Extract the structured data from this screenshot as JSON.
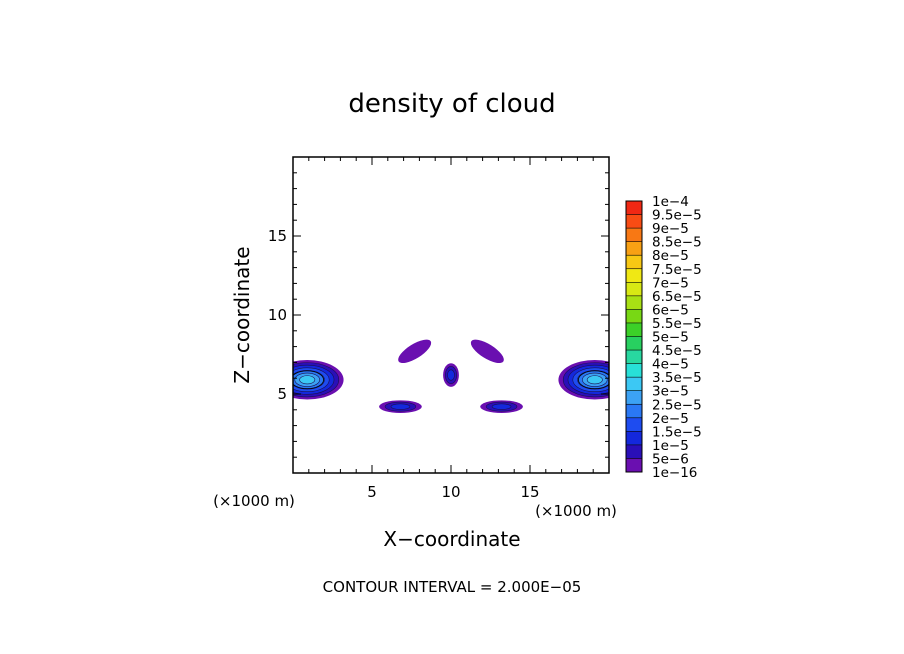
{
  "chart_data": {
    "type": "heatmap",
    "title": "density of cloud",
    "xlabel": "X−coordinate",
    "ylabel": "Z−coordinate",
    "x_unit_label": "(×1000 m)",
    "y_unit_label": "(×1000 m)",
    "xlim": [
      0,
      20
    ],
    "ylim": [
      0,
      20
    ],
    "x_ticks": [
      5,
      10,
      15
    ],
    "y_ticks": [
      5,
      10,
      15
    ],
    "footer": "CONTOUR INTERVAL = 2.000E−05",
    "colorbar": {
      "labels": [
        "1e−16",
        "5e−6",
        "1e−5",
        "1.5e−5",
        "2e−5",
        "2.5e−5",
        "3e−5",
        "3.5e−5",
        "4e−5",
        "4.5e−5",
        "5e−5",
        "5.5e−5",
        "6e−5",
        "6.5e−5",
        "7e−5",
        "7.5e−5",
        "8e−5",
        "8.5e−5",
        "9e−5",
        "9.5e−5",
        "1e−4"
      ],
      "colors": [
        "#6a0fb0",
        "#2a0fb8",
        "#1428dc",
        "#1e4cf0",
        "#2a78f4",
        "#3ca2f4",
        "#3cc8f4",
        "#28e0d8",
        "#28d8a0",
        "#28d060",
        "#3cd028",
        "#78d814",
        "#a8e014",
        "#d8e814",
        "#f0e814",
        "#f8c814",
        "#f8a014",
        "#f87814",
        "#f84c14",
        "#f02814",
        "#f08080"
      ]
    },
    "regions": [
      {
        "cx": 0.9,
        "cz": 5.9,
        "rx": 2.3,
        "rz": 1.25,
        "peak_level": 6
      },
      {
        "cx": 19.1,
        "cz": 5.9,
        "rx": 2.3,
        "rz": 1.25,
        "peak_level": 6
      },
      {
        "cx": 7.7,
        "cz": 7.7,
        "rx": 1.2,
        "rz": 0.45,
        "angle": -32,
        "peak_level": 0
      },
      {
        "cx": 12.3,
        "cz": 7.7,
        "rx": 1.2,
        "rz": 0.45,
        "angle": 32,
        "peak_level": 0
      },
      {
        "cx": 10.0,
        "cz": 6.2,
        "rx": 0.5,
        "rz": 0.75,
        "peak_level": 2
      },
      {
        "cx": 6.8,
        "cz": 4.2,
        "rx": 1.35,
        "rz": 0.4,
        "peak_level": 2
      },
      {
        "cx": 13.2,
        "cz": 4.2,
        "rx": 1.35,
        "rz": 0.4,
        "peak_level": 2
      }
    ]
  }
}
